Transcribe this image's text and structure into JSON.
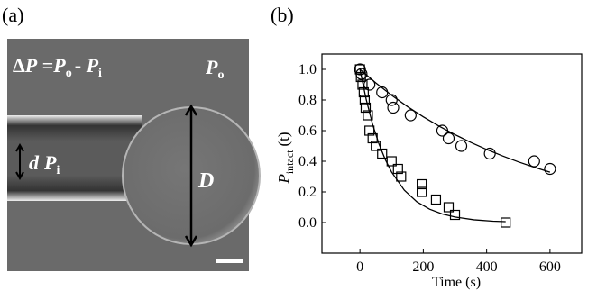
{
  "panel_a": {
    "label": "(a)",
    "equation": [
      "Δ",
      "P",
      " =",
      "P",
      "o",
      "- ",
      "P",
      "i"
    ],
    "outer": [
      "P",
      "o"
    ],
    "bubble_diameter": "D",
    "pipette": [
      "d",
      "P",
      "i"
    ]
  },
  "panel_b": {
    "label": "(b)"
  },
  "chart_data": {
    "type": "scatter",
    "xlabel": "Time (s)",
    "ylabel": [
      "P",
      "intact",
      "(t)"
    ],
    "xlim": [
      -120,
      700
    ],
    "ylim": [
      -0.2,
      1.1
    ],
    "xticks": [
      0,
      200,
      400,
      600
    ],
    "yticks": [
      {
        "value": 0,
        "label": "0.0"
      },
      0.2,
      0.4,
      0.6,
      0.8,
      {
        "value": 1,
        "label": "1.0"
      }
    ],
    "series": [
      {
        "marker": "circle",
        "color": "#000000",
        "x": [
          0,
          5,
          30,
          70,
          100,
          105,
          160,
          260,
          280,
          320,
          410,
          550,
          600
        ],
        "values": [
          1.0,
          0.97,
          0.9,
          0.85,
          0.8,
          0.75,
          0.7,
          0.6,
          0.55,
          0.5,
          0.45,
          0.4,
          0.35
        ]
      },
      {
        "marker": "square",
        "color": "#000000",
        "x": [
          0,
          3,
          8,
          12,
          15,
          18,
          25,
          30,
          40,
          50,
          70,
          100,
          120,
          130,
          195,
          195,
          240,
          280,
          300,
          460
        ],
        "values": [
          1.0,
          0.95,
          0.9,
          0.85,
          0.8,
          0.75,
          0.7,
          0.6,
          0.55,
          0.5,
          0.45,
          0.4,
          0.35,
          0.3,
          0.25,
          0.2,
          0.15,
          0.1,
          0.05,
          0.0
        ]
      }
    ],
    "lines": [
      {
        "color": "#000000",
        "x": [
          0,
          50,
          100,
          150,
          200,
          250,
          300,
          350,
          400,
          450,
          500,
          550,
          600
        ],
        "values": [
          1,
          0.912,
          0.831,
          0.757,
          0.69,
          0.629,
          0.574,
          0.523,
          0.477,
          0.435,
          0.396,
          0.361,
          0.329
        ]
      },
      {
        "color": "#000000",
        "x": [
          0,
          20,
          40,
          60,
          80,
          100,
          140,
          180,
          220,
          260,
          300,
          360,
          420,
          460
        ],
        "values": [
          1,
          0.801,
          0.641,
          0.513,
          0.411,
          0.329,
          0.211,
          0.135,
          0.087,
          0.056,
          0.036,
          0.018,
          0.009,
          0.006
        ]
      }
    ]
  }
}
